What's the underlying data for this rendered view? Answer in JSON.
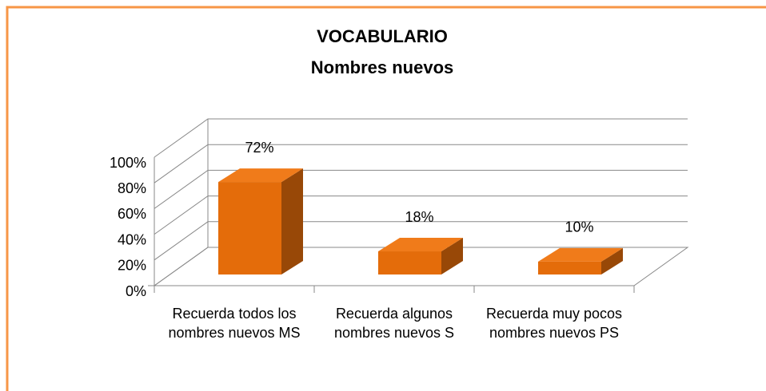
{
  "chart_data": {
    "type": "bar3d",
    "title": "VOCABULARIO",
    "subtitle": "Nombres nuevos",
    "categories": [
      "Recuerda todos los nombres nuevos MS",
      "Recuerda algunos nombres nuevos S",
      "Recuerda muy pocos nombres nuevos PS"
    ],
    "values": [
      72,
      18,
      10
    ],
    "value_labels": [
      "72%",
      "18%",
      "10%"
    ],
    "color": "#e46c0a",
    "ylim": [
      0,
      100
    ],
    "yticks": [
      {
        "value": 0,
        "label": "0%"
      },
      {
        "value": 20,
        "label": "20%"
      },
      {
        "value": 40,
        "label": "40%"
      },
      {
        "value": 60,
        "label": "60%"
      },
      {
        "value": 80,
        "label": "80%"
      },
      {
        "value": 100,
        "label": "100%"
      }
    ],
    "grid": true
  }
}
